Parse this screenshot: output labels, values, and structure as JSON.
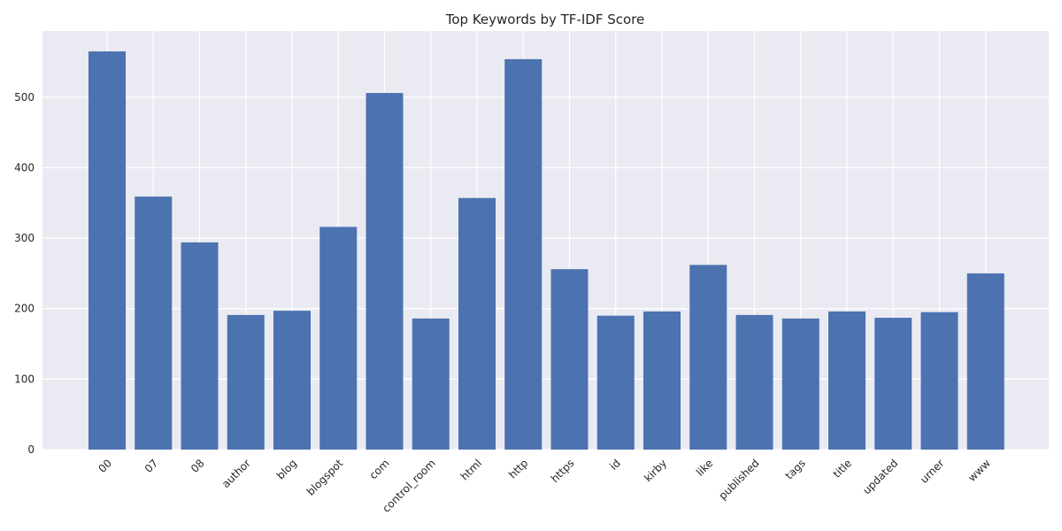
{
  "chart_data": {
    "type": "bar",
    "title": "Top Keywords by TF-IDF Score",
    "xlabel": "",
    "ylabel": "",
    "categories": [
      "00",
      "07",
      "08",
      "author",
      "blog",
      "blogspot",
      "com",
      "control_room",
      "html",
      "http",
      "https",
      "id",
      "kirby",
      "like",
      "published",
      "tags",
      "title",
      "updated",
      "urner",
      "www"
    ],
    "values": [
      565,
      359,
      294,
      191,
      197,
      316,
      506,
      186,
      357,
      554,
      256,
      190,
      196,
      262,
      191,
      186,
      196,
      187,
      195,
      250
    ],
    "ylim": [
      0,
      594
    ],
    "yticks": [
      0,
      100,
      200,
      300,
      400,
      500
    ],
    "grid": true,
    "legend": "none",
    "colors": {
      "bar": "#4c72b0",
      "plot_background": "#eaeaf2",
      "grid": "#ffffff"
    }
  }
}
